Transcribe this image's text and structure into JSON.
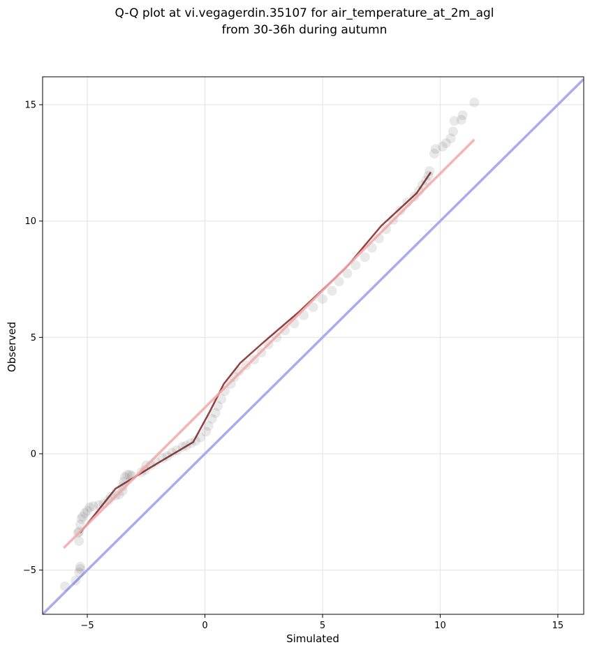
{
  "chart_data": {
    "type": "scatter",
    "title_lines": [
      "Q-Q plot at vi.vegagerdin.35107 for air_temperature_at_2m_agl",
      "from 30-36h during autumn"
    ],
    "xlabel": "Simulated",
    "ylabel": "Observed",
    "xlim": [
      -6.9,
      16.1
    ],
    "ylim": [
      -6.9,
      16.2
    ],
    "xticks": [
      -5,
      0,
      5,
      10,
      15
    ],
    "yticks": [
      -5,
      0,
      5,
      10,
      15
    ],
    "xtick_labels": [
      "−5",
      "0",
      "5",
      "10",
      "15"
    ],
    "ytick_labels": [
      "−5",
      "0",
      "5",
      "10",
      "15"
    ],
    "grid": true,
    "fit_line": {
      "x": [
        -6.0,
        11.45
      ],
      "y": [
        -4.05,
        13.5
      ],
      "color": "#f4a6a6"
    },
    "identity_line": {
      "x": [
        -6.9,
        16.1
      ],
      "y": [
        -6.9,
        16.1
      ],
      "color": "#a9aaf0"
    },
    "quantile_curve": {
      "x": [
        -5.3,
        -3.8,
        -2.0,
        -0.5,
        0.2,
        0.8,
        1.5,
        2.5,
        4.0,
        6.0,
        7.5,
        9.0,
        9.6
      ],
      "y": [
        -3.4,
        -1.5,
        -0.4,
        0.5,
        1.8,
        3.0,
        3.9,
        4.8,
        6.1,
        8.0,
        9.8,
        11.2,
        12.1
      ]
    },
    "points": [
      [
        -5.95,
        -5.7
      ],
      [
        -5.5,
        -5.45
      ],
      [
        -5.35,
        -5.1
      ],
      [
        -5.3,
        -4.95
      ],
      [
        -5.3,
        -4.85
      ],
      [
        -5.35,
        -3.75
      ],
      [
        -5.4,
        -3.4
      ],
      [
        -5.35,
        -3.35
      ],
      [
        -5.3,
        -3.05
      ],
      [
        -5.25,
        -2.8
      ],
      [
        -5.2,
        -2.7
      ],
      [
        -5.1,
        -2.55
      ],
      [
        -5.0,
        -2.45
      ],
      [
        -4.9,
        -2.3
      ],
      [
        -4.75,
        -2.25
      ],
      [
        -4.5,
        -2.2
      ],
      [
        -4.3,
        -2.15
      ],
      [
        -4.1,
        -2.0
      ],
      [
        -4.0,
        -1.85
      ],
      [
        -3.8,
        -1.8
      ],
      [
        -3.65,
        -1.75
      ],
      [
        -3.5,
        -1.6
      ],
      [
        -3.5,
        -1.4
      ],
      [
        -3.45,
        -1.2
      ],
      [
        -3.4,
        -1.0
      ],
      [
        -3.3,
        -0.9
      ],
      [
        -3.2,
        -0.9
      ],
      [
        -3.1,
        -0.95
      ],
      [
        -2.7,
        -0.8
      ],
      [
        -2.55,
        -0.7
      ],
      [
        -2.5,
        -0.5
      ],
      [
        -2.3,
        -0.5
      ],
      [
        -2.1,
        -0.35
      ],
      [
        -1.8,
        -0.2
      ],
      [
        -1.6,
        -0.1
      ],
      [
        -1.4,
        0.05
      ],
      [
        -1.2,
        0.15
      ],
      [
        -0.95,
        0.3
      ],
      [
        -0.8,
        0.35
      ],
      [
        -0.6,
        0.45
      ],
      [
        -0.4,
        0.55
      ],
      [
        -0.2,
        0.7
      ],
      [
        0.05,
        0.95
      ],
      [
        0.15,
        1.2
      ],
      [
        0.3,
        1.5
      ],
      [
        0.45,
        1.75
      ],
      [
        0.55,
        2.05
      ],
      [
        0.7,
        2.35
      ],
      [
        0.85,
        2.7
      ],
      [
        1.1,
        3.0
      ],
      [
        1.25,
        3.3
      ],
      [
        1.45,
        3.55
      ],
      [
        1.75,
        3.8
      ],
      [
        2.1,
        4.05
      ],
      [
        2.4,
        4.35
      ],
      [
        2.7,
        4.7
      ],
      [
        3.05,
        5.0
      ],
      [
        3.4,
        5.3
      ],
      [
        3.8,
        5.6
      ],
      [
        4.2,
        5.95
      ],
      [
        4.6,
        6.3
      ],
      [
        5.0,
        6.65
      ],
      [
        5.4,
        7.0
      ],
      [
        5.7,
        7.4
      ],
      [
        6.05,
        7.75
      ],
      [
        6.4,
        8.1
      ],
      [
        6.8,
        8.45
      ],
      [
        7.1,
        8.85
      ],
      [
        7.4,
        9.25
      ],
      [
        7.7,
        9.65
      ],
      [
        8.0,
        10.05
      ],
      [
        8.3,
        10.45
      ],
      [
        8.6,
        10.8
      ],
      [
        8.9,
        11.05
      ],
      [
        9.1,
        11.3
      ],
      [
        9.25,
        11.55
      ],
      [
        9.4,
        11.75
      ],
      [
        9.5,
        11.95
      ],
      [
        9.55,
        12.15
      ],
      [
        9.75,
        12.9
      ],
      [
        9.8,
        13.1
      ],
      [
        10.1,
        13.2
      ],
      [
        10.25,
        13.35
      ],
      [
        10.45,
        13.55
      ],
      [
        10.55,
        13.85
      ],
      [
        10.6,
        14.3
      ],
      [
        10.9,
        14.35
      ],
      [
        10.95,
        14.55
      ],
      [
        11.45,
        15.1
      ]
    ]
  }
}
